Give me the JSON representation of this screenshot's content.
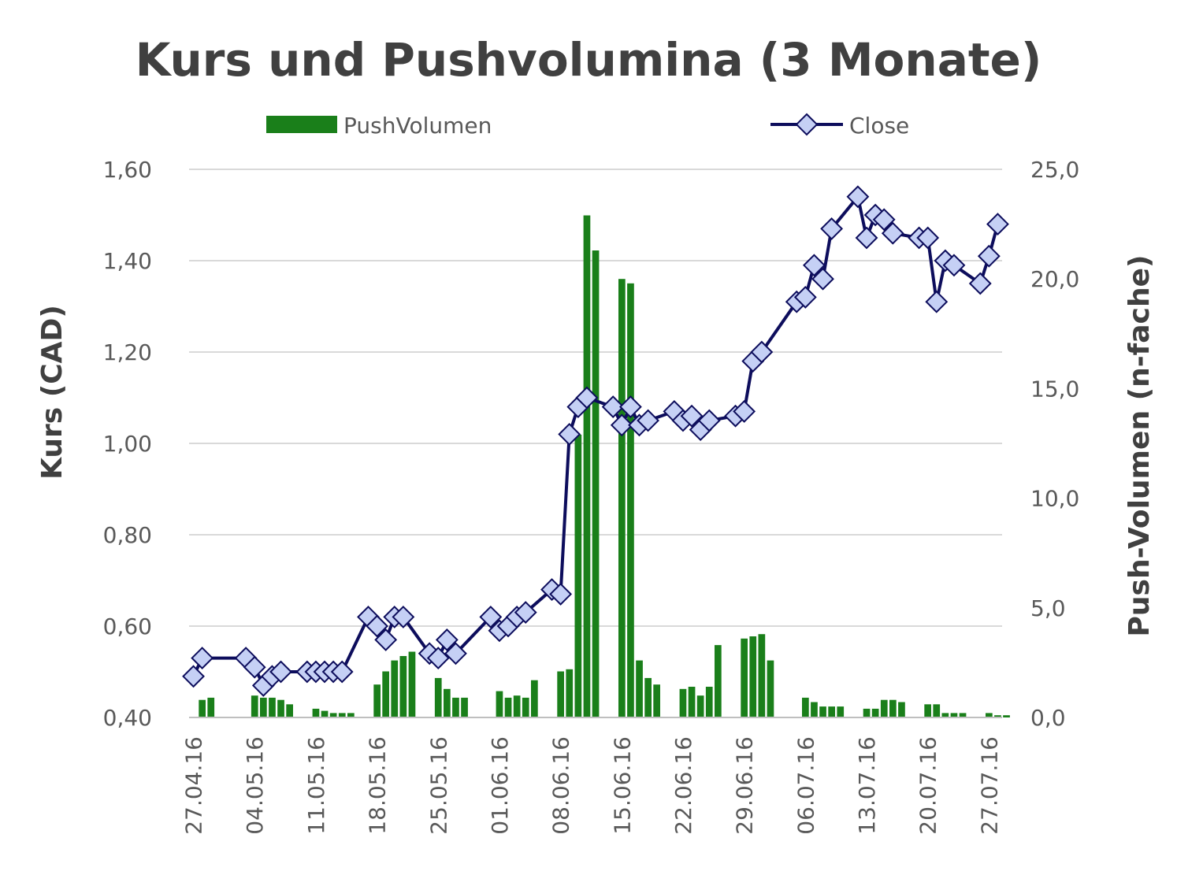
{
  "chart_data": {
    "type": "bar",
    "title": "Kurs und Pushvolumina (3 Monate)",
    "ylabel": "Kurs (CAD)",
    "y2label": "Push-Volumen (n-fache)",
    "ylim": [
      0.4,
      1.6
    ],
    "y2lim": [
      0,
      25
    ],
    "yticks": [
      "1,60",
      "1,40",
      "1,20",
      "1,00",
      "0,80",
      "0,60",
      "0,40"
    ],
    "y2ticks": [
      "25,0",
      "20,0",
      "15,0",
      "10,0",
      "5,0",
      "0,0"
    ],
    "grid": true,
    "legend_position": "top",
    "x_tick_labels": [
      "27.04.16",
      "04.05.16",
      "11.05.16",
      "18.05.16",
      "25.05.16",
      "01.06.16",
      "08.06.16",
      "15.06.16",
      "22.06.16",
      "29.06.16",
      "06.07.16",
      "13.07.16",
      "20.07.16",
      "27.07.16"
    ],
    "colors": {
      "bar": "#1a7f1a",
      "line": "#0d0d5c",
      "marker_fill": "#c5d0f5"
    },
    "series": [
      {
        "name": "PushVolumen",
        "axis": "right",
        "points": [
          [
            1,
            0.8
          ],
          [
            2,
            0.9
          ],
          [
            7,
            1.0
          ],
          [
            8,
            0.9
          ],
          [
            9,
            0.9
          ],
          [
            10,
            0.8
          ],
          [
            11,
            0.6
          ],
          [
            14,
            0.4
          ],
          [
            15,
            0.3
          ],
          [
            16,
            0.2
          ],
          [
            17,
            0.2
          ],
          [
            18,
            0.2
          ],
          [
            21,
            1.5
          ],
          [
            22,
            2.1
          ],
          [
            23,
            2.6
          ],
          [
            24,
            2.8
          ],
          [
            25,
            3.0
          ],
          [
            28,
            1.8
          ],
          [
            29,
            1.3
          ],
          [
            30,
            0.9
          ],
          [
            31,
            0.9
          ],
          [
            35,
            1.2
          ],
          [
            36,
            0.9
          ],
          [
            37,
            1.0
          ],
          [
            38,
            0.9
          ],
          [
            39,
            1.7
          ],
          [
            42,
            2.1
          ],
          [
            43,
            2.2
          ],
          [
            44,
            12.9
          ],
          [
            45,
            22.9
          ],
          [
            46,
            21.3
          ],
          [
            49,
            20.0
          ],
          [
            50,
            19.8
          ],
          [
            51,
            2.6
          ],
          [
            52,
            1.8
          ],
          [
            53,
            1.5
          ],
          [
            56,
            1.3
          ],
          [
            57,
            1.4
          ],
          [
            58,
            1.0
          ],
          [
            59,
            1.4
          ],
          [
            60,
            3.3
          ],
          [
            63,
            3.6
          ],
          [
            64,
            3.7
          ],
          [
            65,
            3.8
          ],
          [
            66,
            2.6
          ],
          [
            70,
            0.9
          ],
          [
            71,
            0.7
          ],
          [
            72,
            0.5
          ],
          [
            73,
            0.5
          ],
          [
            74,
            0.5
          ],
          [
            77,
            0.4
          ],
          [
            78,
            0.4
          ],
          [
            79,
            0.8
          ],
          [
            80,
            0.8
          ],
          [
            81,
            0.7
          ],
          [
            84,
            0.6
          ],
          [
            85,
            0.6
          ],
          [
            86,
            0.2
          ],
          [
            87,
            0.2
          ],
          [
            88,
            0.2
          ],
          [
            91,
            0.2
          ],
          [
            92,
            0.1
          ],
          [
            93,
            0.1
          ]
        ]
      },
      {
        "name": "Close",
        "axis": "left",
        "points": [
          [
            0,
            0.49
          ],
          [
            1,
            0.53
          ],
          [
            6,
            0.53
          ],
          [
            7,
            0.51
          ],
          [
            8,
            0.47
          ],
          [
            9,
            0.49
          ],
          [
            10,
            0.5
          ],
          [
            13,
            0.5
          ],
          [
            14,
            0.5
          ],
          [
            15,
            0.5
          ],
          [
            16,
            0.5
          ],
          [
            17,
            0.5
          ],
          [
            20,
            0.62
          ],
          [
            21,
            0.6
          ],
          [
            22,
            0.57
          ],
          [
            23,
            0.62
          ],
          [
            24,
            0.62
          ],
          [
            27,
            0.54
          ],
          [
            28,
            0.53
          ],
          [
            29,
            0.57
          ],
          [
            30,
            0.54
          ],
          [
            34,
            0.62
          ],
          [
            35,
            0.59
          ],
          [
            36,
            0.6
          ],
          [
            37,
            0.62
          ],
          [
            38,
            0.63
          ],
          [
            41,
            0.68
          ],
          [
            42,
            0.67
          ],
          [
            43,
            1.02
          ],
          [
            44,
            1.08
          ],
          [
            45,
            1.1
          ],
          [
            48,
            1.08
          ],
          [
            49,
            1.04
          ],
          [
            50,
            1.08
          ],
          [
            51,
            1.04
          ],
          [
            52,
            1.05
          ],
          [
            55,
            1.07
          ],
          [
            56,
            1.05
          ],
          [
            57,
            1.06
          ],
          [
            58,
            1.03
          ],
          [
            59,
            1.05
          ],
          [
            62,
            1.06
          ],
          [
            63,
            1.07
          ],
          [
            64,
            1.18
          ],
          [
            65,
            1.2
          ],
          [
            69,
            1.31
          ],
          [
            70,
            1.32
          ],
          [
            71,
            1.39
          ],
          [
            72,
            1.36
          ],
          [
            73,
            1.47
          ],
          [
            76,
            1.54
          ],
          [
            77,
            1.45
          ],
          [
            78,
            1.5
          ],
          [
            79,
            1.49
          ],
          [
            80,
            1.46
          ],
          [
            83,
            1.45
          ],
          [
            84,
            1.45
          ],
          [
            85,
            1.31
          ],
          [
            86,
            1.4
          ],
          [
            87,
            1.39
          ],
          [
            90,
            1.35
          ],
          [
            91,
            1.41
          ],
          [
            92,
            1.48
          ]
        ]
      }
    ]
  }
}
